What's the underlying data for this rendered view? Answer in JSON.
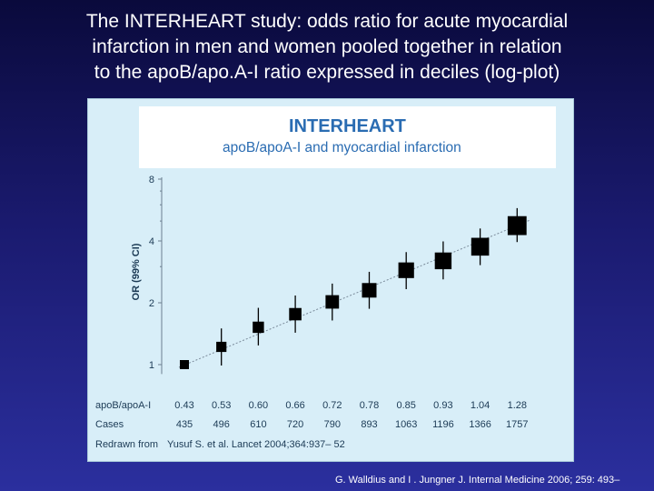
{
  "slide": {
    "title_lines": [
      "The INTERHEART study: odds ratio for acute myocardial",
      "infarction in men and women pooled together in relation",
      "to the apoB/apo.A-I ratio expressed in deciles (log-plot)"
    ],
    "footnote": "G. Walldius and  I . Jungner J. Internal Medicine 2006; 259: 493–"
  },
  "figure": {
    "header_title": "INTERHEART",
    "header_subtitle": "apoB/apoA-I and myocardial infarction",
    "table": {
      "ratio_label": "apoB/apoA-I",
      "ratio_values": [
        "0.43",
        "0.53",
        "0.60",
        "0.66",
        "0.72",
        "0.78",
        "0.85",
        "0.93",
        "1.04",
        "1.28"
      ],
      "cases_label": "Cases",
      "cases_values": [
        "435",
        "496",
        "610",
        "720",
        "790",
        "893",
        "1063",
        "1196",
        "1366",
        "1757"
      ],
      "redrawn_label": "Redrawn from",
      "redrawn_source": "Yusuf S. et al.  Lancet 2004;364:937– 52"
    }
  },
  "chart_data": {
    "type": "scatter",
    "ylabel": "OR (99% CI)",
    "yscale": "log",
    "ylim": [
      0.9,
      8
    ],
    "yticks": [
      1,
      2,
      4,
      8
    ],
    "ytick_labels": [
      "1",
      "2",
      "4",
      "8"
    ],
    "categories": [
      "0.43",
      "0.53",
      "0.60",
      "0.66",
      "0.72",
      "0.78",
      "0.85",
      "0.93",
      "1.04",
      "1.28"
    ],
    "series": [
      {
        "values": [
          1.0,
          1.22,
          1.52,
          1.76,
          2.02,
          2.3,
          2.88,
          3.2,
          3.75,
          4.75
        ],
        "ci_low": [
          1.0,
          0.99,
          1.24,
          1.43,
          1.64,
          1.87,
          2.33,
          2.6,
          3.05,
          3.95
        ],
        "ci_high": [
          1.0,
          1.5,
          1.89,
          2.17,
          2.48,
          2.83,
          3.53,
          3.98,
          4.6,
          5.78
        ]
      }
    ],
    "trend_line": {
      "from": 0.97,
      "to": 5.05
    },
    "colors": {
      "marker": "#000000",
      "axis": "#6b7f8f",
      "trend": "#7a8a9a"
    }
  }
}
